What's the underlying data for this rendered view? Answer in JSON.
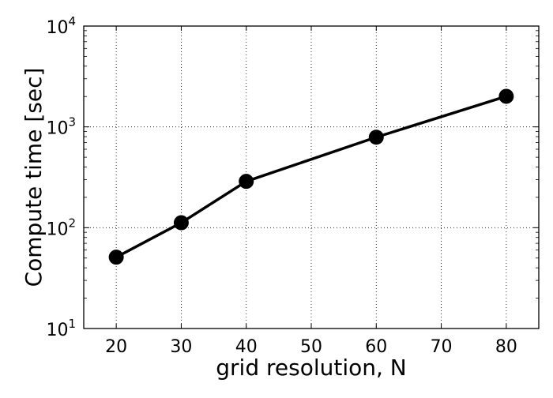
{
  "chart_data": {
    "type": "line",
    "title": "",
    "xlabel": "grid resolution, N",
    "ylabel": "Compute time [sec]",
    "x": [
      20,
      30,
      40,
      60,
      80
    ],
    "series": [
      {
        "values": [
          51,
          112,
          288,
          790,
          2010
        ]
      }
    ],
    "xlim": [
      15,
      85
    ],
    "ylim": [
      10,
      10000
    ],
    "yscale": "log",
    "xticks": [
      20,
      30,
      40,
      50,
      60,
      70,
      80
    ],
    "xtick_labels": [
      "20",
      "30",
      "40",
      "50",
      "60",
      "70",
      "80"
    ],
    "yticks": [
      10,
      100,
      1000,
      10000
    ],
    "ytick_labels": [
      {
        "base": "10",
        "exp": "1"
      },
      {
        "base": "10",
        "exp": "2"
      },
      {
        "base": "10",
        "exp": "3"
      },
      {
        "base": "10",
        "exp": "4"
      }
    ],
    "grid": true,
    "grid_style": "dotted",
    "line_color": "#000000",
    "marker": "circle"
  }
}
